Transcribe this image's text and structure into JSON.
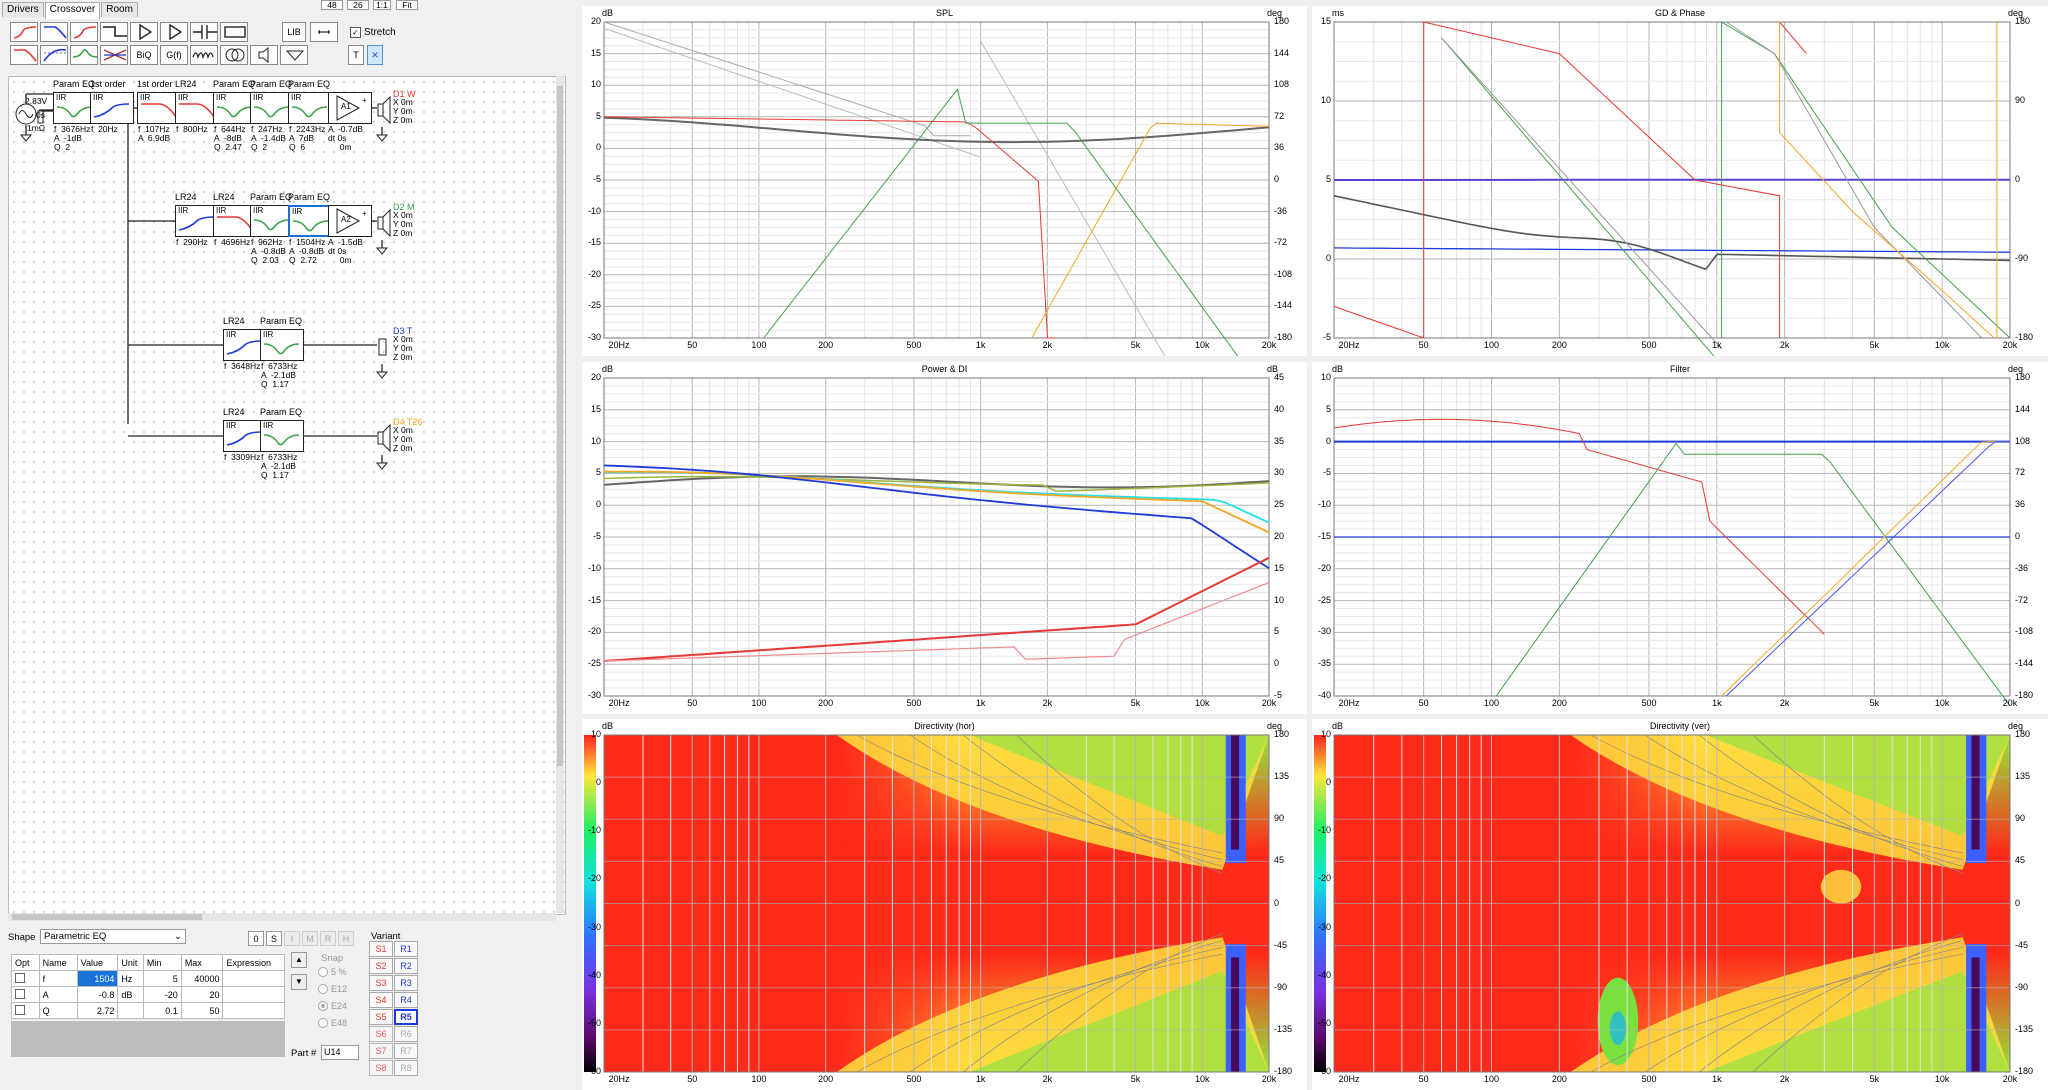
{
  "tabs": [
    "Drivers",
    "Crossover",
    "Room"
  ],
  "top_boxes": [
    "48",
    "26",
    "1:1",
    "Fit"
  ],
  "toolbar": {
    "stretch_label": "Stretch",
    "lib": "LIB",
    "biq": "BiQ",
    "gf": "G(f)",
    "t": "T"
  },
  "source": {
    "voltage": "2.83V",
    "delay": "0s",
    "impedance": "1mΩ"
  },
  "branch1": {
    "blocks": [
      {
        "title": "Param EQ",
        "lines": "f  3676Hz\nA  -1dB\nQ  2"
      },
      {
        "title": "1st order",
        "lines": "f  20Hz"
      },
      {
        "title": "1st order",
        "lines": "f  107Hz\nA  6.9dB"
      },
      {
        "title": "LR24",
        "lines": "f  800Hz"
      },
      {
        "title": "Param EQ",
        "lines": "f  644Hz\nA  -8dB\nQ  2.47"
      },
      {
        "title": "Param EQ",
        "lines": "f  247Hz\nA  -1.4dB\nQ  2"
      },
      {
        "title": "Param EQ",
        "lines": "f  2243Hz\nA  7dB\nQ  6"
      }
    ],
    "amp": "A1",
    "amp_lines": "A  -0.7dB\ndt 0s\n     0m",
    "driver": "D1 W",
    "driver_pos": "X 0m\nY 0m\nZ 0m"
  },
  "branch2": {
    "blocks": [
      {
        "title": "LR24",
        "lines": "f  290Hz"
      },
      {
        "title": "LR24",
        "lines": "f  4696Hz"
      },
      {
        "title": "Param EQ",
        "lines": "f  962Hz\nA  -0.8dB\nQ  2.03"
      },
      {
        "title": "Param EQ",
        "lines": "f  1504Hz\nA  -0.8dB\nQ  2.72"
      }
    ],
    "amp": "A2",
    "amp_lines": "A  -1.5dB\ndt 0s\n     0m",
    "driver": "D2 M",
    "driver_pos": "X 0m\nY 0m\nZ 0m"
  },
  "branch3": {
    "blocks": [
      {
        "title": "LR24",
        "lines": "f  3648Hz"
      },
      {
        "title": "Param EQ",
        "lines": "f  6733Hz\nA  -2.1dB\nQ  1.17"
      }
    ],
    "driver": "D3 T",
    "driver_pos": "X 0m\nY 0m\nZ 0m"
  },
  "branch4": {
    "blocks": [
      {
        "title": "LR24",
        "lines": "f  3309Hz"
      },
      {
        "title": "Param EQ",
        "lines": "f  6733Hz\nA  -2.1dB\nQ  1.17"
      }
    ],
    "driver": "D4 T26",
    "driver_pos": "X 0m\nY 0m\nZ 0m"
  },
  "props": {
    "shape_label": "Shape",
    "shape_value": "Parametric EQ",
    "small_btns": [
      "0",
      "S",
      "I",
      "M",
      "R",
      "H"
    ],
    "headers": [
      "Opt",
      "Name",
      "Value",
      "Unit",
      "Min",
      "Max",
      "Expression"
    ],
    "rows": [
      {
        "name": "f",
        "value": "1504",
        "unit": "Hz",
        "min": "5",
        "max": "40000"
      },
      {
        "name": "A",
        "value": "-0.8",
        "unit": "dB",
        "min": "-20",
        "max": "20"
      },
      {
        "name": "Q",
        "value": "2.72",
        "unit": "",
        "min": "0.1",
        "max": "50"
      }
    ],
    "snap_label": "Snap",
    "snap_options": [
      "5 %",
      "E12",
      "E24",
      "E48"
    ],
    "part_label": "Part #",
    "part_value": "U14",
    "variant_label": "Variant",
    "s_btns": [
      "S1",
      "S2",
      "S3",
      "S4",
      "S5",
      "S6",
      "S7",
      "S8"
    ],
    "r_btns": [
      "R1",
      "R2",
      "R3",
      "R4",
      "R5",
      "R6",
      "R7",
      "R8"
    ]
  },
  "charts": {
    "spl": {
      "title": "SPL",
      "left_unit": "dB",
      "right_unit": "deg",
      "left_ticks": [
        "20",
        "15",
        "10",
        "5",
        "0",
        "-5",
        "-10",
        "-15",
        "-20",
        "-25",
        "-30"
      ],
      "right_ticks": [
        "180",
        "144",
        "108",
        "72",
        "36",
        "0",
        "-36",
        "-72",
        "-108",
        "-144",
        "-180"
      ]
    },
    "gd": {
      "title": "GD & Phase",
      "left_unit": "ms",
      "right_unit": "deg",
      "left_ticks": [
        "15",
        "10",
        "5",
        "0",
        "-5"
      ],
      "right_ticks": [
        "180",
        "90",
        "0",
        "-90",
        "-180"
      ]
    },
    "power": {
      "title": "Power & DI",
      "left_unit": "dB",
      "right_unit": "dB",
      "left_ticks": [
        "20",
        "15",
        "10",
        "5",
        "0",
        "-5",
        "-10",
        "-15",
        "-20",
        "-25",
        "-30"
      ],
      "right_ticks": [
        "45",
        "40",
        "35",
        "30",
        "25",
        "20",
        "15",
        "10",
        "5",
        "0",
        "-5"
      ]
    },
    "filter": {
      "title": "Filter",
      "left_unit": "dB",
      "right_unit": "deg",
      "left_ticks": [
        "10",
        "5",
        "0",
        "-5",
        "-10",
        "-15",
        "-20",
        "-25",
        "-30",
        "-35",
        "-40"
      ],
      "right_ticks": [
        "180",
        "144",
        "108",
        "72",
        "36",
        "0",
        "-36",
        "-72",
        "-108",
        "-144",
        "-180"
      ]
    },
    "dirh": {
      "title": "Directivity (hor)",
      "left_unit": "dB",
      "right_unit": "deg",
      "left_ticks": [
        "10",
        "0",
        "-10",
        "-20",
        "-30",
        "-40",
        "-50",
        "-60"
      ],
      "right_ticks": [
        "180",
        "135",
        "90",
        "45",
        "0",
        "-45",
        "-90",
        "-135",
        "-180"
      ]
    },
    "dirv": {
      "title": "Directivity (ver)",
      "left_unit": "dB",
      "right_unit": "deg",
      "left_ticks": [
        "10",
        "0",
        "-10",
        "-20",
        "-30",
        "-40",
        "-50",
        "-60"
      ],
      "right_ticks": [
        "180",
        "135",
        "90",
        "45",
        "0",
        "-45",
        "-90",
        "-135",
        "-180"
      ]
    },
    "x_ticks": [
      "20Hz",
      "50",
      "100",
      "200",
      "500",
      "1k",
      "2k",
      "5k",
      "10k",
      "20k"
    ]
  },
  "colors": {
    "red": "#e53935",
    "green": "#3fa34d",
    "orange": "#f5a623",
    "blue": "#1e3ad8",
    "gray": "#555555",
    "cyan": "#22e0f0",
    "purple": "#5a3fd8"
  }
}
